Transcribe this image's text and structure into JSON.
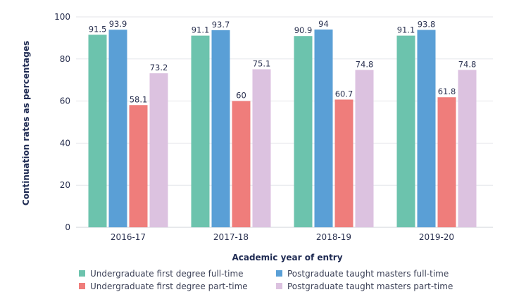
{
  "chart_data": {
    "type": "bar",
    "xlabel": "Academic year of entry",
    "ylabel": "Continuation rates as percentages",
    "ylim": [
      0,
      100
    ],
    "yticks": [
      0,
      20,
      40,
      60,
      80,
      100
    ],
    "grid": true,
    "legend_position": "bottom",
    "categories": [
      "2016-17",
      "2017-18",
      "2018-19",
      "2019-20"
    ],
    "series": [
      {
        "name": "Undergraduate first degree full-time",
        "color": "#6cc3ad",
        "values": [
          91.5,
          91.1,
          90.9,
          91.1
        ]
      },
      {
        "name": "Postgraduate taught masters full-time",
        "color": "#5a9fd6",
        "values": [
          93.9,
          93.7,
          94.0,
          93.8
        ]
      },
      {
        "name": "Undergraduate first degree part-time",
        "color": "#ef7d7b",
        "values": [
          58.1,
          60.0,
          60.7,
          61.8
        ]
      },
      {
        "name": "Postgraduate taught masters part-time",
        "color": "#dcc2e0",
        "values": [
          73.2,
          75.1,
          74.8,
          74.8
        ]
      }
    ],
    "legend_order": [
      0,
      1,
      2,
      3
    ]
  }
}
